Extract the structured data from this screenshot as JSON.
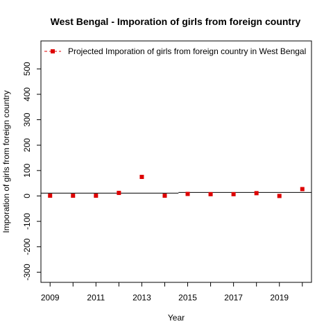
{
  "chart_data": {
    "type": "scatter",
    "title": "West Bengal  -  Imporation of girls from foreign country",
    "xlabel": "Year",
    "ylabel": "Imporation of girls from foreign country",
    "xlim": [
      2008.6,
      2020.4
    ],
    "ylim": [
      -340,
      610
    ],
    "x_ticks": [
      2009,
      2010,
      2011,
      2012,
      2013,
      2014,
      2015,
      2016,
      2017,
      2018,
      2019,
      2020
    ],
    "x_tick_labels": [
      "2009",
      "2011",
      "2013",
      "2015",
      "2017",
      "2019"
    ],
    "x_tick_label_values": [
      2009,
      2011,
      2013,
      2015,
      2017,
      2019
    ],
    "y_ticks": [
      -300,
      -200,
      -100,
      0,
      100,
      200,
      300,
      400,
      500
    ],
    "y_tick_labels": [
      "-300",
      "-200",
      "-100",
      "0",
      "100",
      "200",
      "300",
      "400",
      "500"
    ],
    "grid": false,
    "legend_position": "top-left",
    "series": [
      {
        "name": "Projected  Imporation of girls from foreign country  in  West Bengal",
        "color": "#dd0000",
        "marker": "square",
        "x": [
          2009,
          2010,
          2011,
          2012,
          2013,
          2014,
          2015,
          2016,
          2017,
          2018,
          2019,
          2020
        ],
        "y": [
          1,
          1,
          1,
          12,
          75,
          1,
          8,
          7,
          7,
          11,
          0,
          27
        ]
      }
    ],
    "trend_segments": [
      {
        "x": [
          2008.6,
          2014.6
        ],
        "y": [
          11,
          11
        ]
      },
      {
        "x": [
          2014.6,
          2020.4
        ],
        "y": [
          14,
          14
        ]
      }
    ],
    "trend_color": "#000000"
  }
}
